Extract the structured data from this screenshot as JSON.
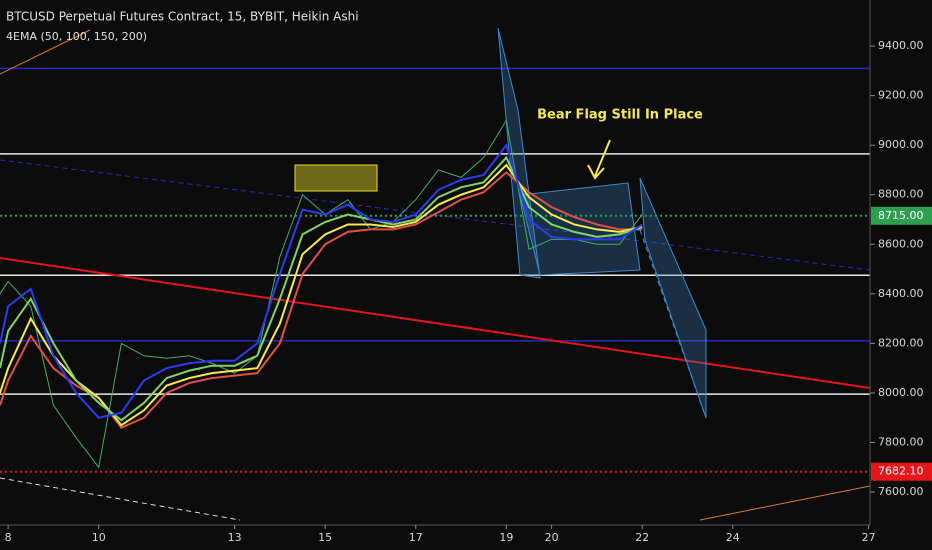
{
  "chart_data": {
    "type": "line",
    "title": "BTCUSD Perpetual Futures Contract, 15, BYBIT, Heikin Ashi",
    "subtitle": "4EMA (50, 100, 150, 200)",
    "annotation": "Bear Flag Still In Place",
    "x": [
      7.82,
      8,
      8.5,
      9,
      9.5,
      10,
      10.5,
      11,
      11.5,
      12,
      12.5,
      13,
      13.5,
      14,
      14.5,
      15,
      15.5,
      16,
      16.5,
      17,
      17.5,
      18,
      18.5,
      19,
      19.5,
      20,
      20.5,
      21,
      21.5,
      22
    ],
    "xlim": [
      7.82,
      27.03
    ],
    "xticks": [
      8,
      10,
      13,
      15,
      17,
      19,
      20,
      22,
      24,
      27
    ],
    "ylim": [
      7467,
      9586
    ],
    "yticks": [
      {
        "value": 9400,
        "label": "9400.00"
      },
      {
        "value": 9200,
        "label": "9200.00"
      },
      {
        "value": 9000,
        "label": "9000.00"
      },
      {
        "value": 8800,
        "label": "8800.00"
      },
      {
        "value": 8600,
        "label": "8600.00"
      },
      {
        "value": 8400,
        "label": "8400.00"
      },
      {
        "value": 8200,
        "label": "8200.00"
      },
      {
        "value": 8000,
        "label": "8000.00"
      },
      {
        "value": 7800,
        "label": "7800.00"
      },
      {
        "value": 7600,
        "label": "7600.00"
      }
    ],
    "series": [
      {
        "color": "#3fae6a",
        "values": [
          8400,
          8450,
          8350,
          7950,
          7820,
          7700,
          8200,
          8150,
          8140,
          8150,
          8120,
          8080,
          8150,
          8550,
          8800,
          8720,
          8780,
          8660,
          8690,
          8780,
          8900,
          8870,
          8950,
          9100,
          8580,
          8620,
          8620,
          8600,
          8600,
          8720
        ]
      },
      {
        "color": "#e0504a",
        "values": [
          7950,
          8050,
          8230,
          8100,
          8030,
          7980,
          7860,
          7900,
          8000,
          8040,
          8060,
          8070,
          8080,
          8200,
          8480,
          8600,
          8650,
          8660,
          8660,
          8680,
          8730,
          8780,
          8810,
          8890,
          8810,
          8750,
          8710,
          8680,
          8660,
          8660
        ]
      },
      {
        "color": "#f5e94c",
        "values": [
          8000,
          8100,
          8300,
          8150,
          8050,
          7980,
          7870,
          7930,
          8030,
          8060,
          8080,
          8090,
          8100,
          8280,
          8560,
          8640,
          8680,
          8680,
          8670,
          8690,
          8760,
          8800,
          8830,
          8920,
          8790,
          8720,
          8680,
          8660,
          8650,
          8670
        ]
      },
      {
        "color": "#7ed36b",
        "values": [
          8100,
          8250,
          8380,
          8200,
          8050,
          7960,
          7890,
          7960,
          8060,
          8090,
          8110,
          8110,
          8150,
          8380,
          8640,
          8690,
          8720,
          8700,
          8680,
          8700,
          8790,
          8830,
          8850,
          8950,
          8750,
          8680,
          8650,
          8630,
          8640,
          8670
        ]
      },
      {
        "color": "#2b3cf0",
        "values": [
          8200,
          8350,
          8420,
          8150,
          8000,
          7900,
          7920,
          8050,
          8100,
          8120,
          8130,
          8130,
          8200,
          8480,
          8740,
          8720,
          8760,
          8700,
          8690,
          8720,
          8820,
          8860,
          8880,
          9000,
          8700,
          8630,
          8620,
          8620,
          8620,
          8680
        ]
      }
    ],
    "levels": [
      {
        "value": 9310,
        "color": "#2a2ab8"
      },
      {
        "value": 8965,
        "color": "#e8e8e8"
      },
      {
        "value": 8475,
        "color": "#e8e8e8"
      },
      {
        "value": 8210,
        "color": "#2a2ab8"
      },
      {
        "value": 7995,
        "color": "#e8e8e8"
      }
    ],
    "markers": [
      {
        "value": 8715,
        "label": "8715.00",
        "color": "#2e9e4f"
      },
      {
        "value": 7682.1,
        "label": "7682.10",
        "color": "#e8151b"
      }
    ]
  }
}
